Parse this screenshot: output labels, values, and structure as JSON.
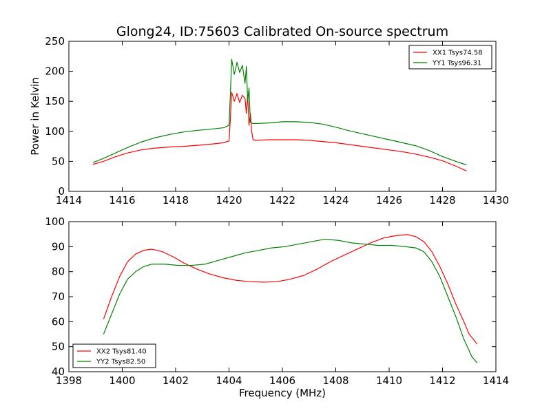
{
  "chart_data": [
    {
      "type": "line",
      "title": "Glong24, ID:75603 Calibrated On-source spectrum",
      "xlabel": "",
      "ylabel": "Power in Kelvin",
      "xlim": [
        1414,
        1430
      ],
      "ylim": [
        0,
        250
      ],
      "xticks": [
        "1414",
        "1416",
        "1418",
        "1420",
        "1422",
        "1424",
        "1426",
        "1428",
        "1430"
      ],
      "yticks": [
        "0",
        "50",
        "100",
        "150",
        "200",
        "250"
      ],
      "grid": false,
      "legend": "top-right",
      "series": [
        {
          "name": "XX1 Tsys74.58",
          "color": "#ff0000",
          "points": [
            [
              1414.9,
              45
            ],
            [
              1415.3,
              50
            ],
            [
              1415.7,
              57
            ],
            [
              1416.2,
              64
            ],
            [
              1416.7,
              69
            ],
            [
              1417.2,
              72
            ],
            [
              1417.8,
              74
            ],
            [
              1418.3,
              75
            ],
            [
              1418.9,
              77
            ],
            [
              1419.4,
              79
            ],
            [
              1419.8,
              81
            ],
            [
              1420.0,
              84
            ],
            [
              1420.05,
              120
            ],
            [
              1420.1,
              165
            ],
            [
              1420.2,
              150
            ],
            [
              1420.3,
              163
            ],
            [
              1420.4,
              148
            ],
            [
              1420.5,
              160
            ],
            [
              1420.6,
              155
            ],
            [
              1420.65,
              130
            ],
            [
              1420.7,
              160
            ],
            [
              1420.75,
              110
            ],
            [
              1420.8,
              130
            ],
            [
              1420.85,
              100
            ],
            [
              1420.9,
              86
            ],
            [
              1421.0,
              85
            ],
            [
              1421.5,
              86
            ],
            [
              1422.0,
              86
            ],
            [
              1422.5,
              86
            ],
            [
              1423.0,
              85
            ],
            [
              1423.5,
              83
            ],
            [
              1424.0,
              81
            ],
            [
              1424.5,
              78
            ],
            [
              1425.0,
              75
            ],
            [
              1425.5,
              72
            ],
            [
              1426.0,
              69
            ],
            [
              1426.5,
              66
            ],
            [
              1427.0,
              62
            ],
            [
              1427.5,
              57
            ],
            [
              1428.0,
              51
            ],
            [
              1428.5,
              42
            ],
            [
              1428.9,
              34
            ]
          ]
        },
        {
          "name": "YY1 Tsys96.31",
          "color": "#008000",
          "points": [
            [
              1414.9,
              48
            ],
            [
              1415.3,
              55
            ],
            [
              1415.7,
              63
            ],
            [
              1416.2,
              73
            ],
            [
              1416.7,
              82
            ],
            [
              1417.2,
              89
            ],
            [
              1417.8,
              95
            ],
            [
              1418.3,
              99
            ],
            [
              1418.9,
              102
            ],
            [
              1419.4,
              104
            ],
            [
              1419.8,
              106
            ],
            [
              1420.0,
              110
            ],
            [
              1420.05,
              160
            ],
            [
              1420.1,
              220
            ],
            [
              1420.2,
              195
            ],
            [
              1420.3,
              215
            ],
            [
              1420.4,
              198
            ],
            [
              1420.5,
              210
            ],
            [
              1420.6,
              180
            ],
            [
              1420.65,
              208
            ],
            [
              1420.7,
              150
            ],
            [
              1420.75,
              172
            ],
            [
              1420.8,
              115
            ],
            [
              1420.9,
              113
            ],
            [
              1421.0,
              113
            ],
            [
              1421.5,
              114
            ],
            [
              1422.0,
              116
            ],
            [
              1422.5,
              116
            ],
            [
              1423.0,
              115
            ],
            [
              1423.5,
              112
            ],
            [
              1424.0,
              107
            ],
            [
              1424.5,
              101
            ],
            [
              1425.0,
              96
            ],
            [
              1425.5,
              91
            ],
            [
              1426.0,
              86
            ],
            [
              1426.5,
              81
            ],
            [
              1427.0,
              76
            ],
            [
              1427.5,
              68
            ],
            [
              1428.0,
              58
            ],
            [
              1428.5,
              50
            ],
            [
              1428.9,
              44
            ]
          ]
        }
      ]
    },
    {
      "type": "line",
      "title": "",
      "xlabel": "Frequency (MHz)",
      "ylabel": "",
      "xlim": [
        1398,
        1414
      ],
      "ylim": [
        40,
        100
      ],
      "xticks": [
        "1398",
        "1400",
        "1402",
        "1404",
        "1406",
        "1408",
        "1410",
        "1412",
        "1414"
      ],
      "yticks": [
        "40",
        "50",
        "60",
        "70",
        "80",
        "90",
        "100"
      ],
      "grid": false,
      "legend": "bottom-left",
      "series": [
        {
          "name": "XX2 Tsys81.40",
          "color": "#ff0000",
          "points": [
            [
              1399.3,
              61
            ],
            [
              1399.6,
              70
            ],
            [
              1399.9,
              78
            ],
            [
              1400.2,
              84
            ],
            [
              1400.5,
              87
            ],
            [
              1400.8,
              88.5
            ],
            [
              1401.1,
              89
            ],
            [
              1401.5,
              88
            ],
            [
              1401.9,
              86
            ],
            [
              1402.3,
              83.5
            ],
            [
              1402.8,
              81
            ],
            [
              1403.3,
              79
            ],
            [
              1403.8,
              77.5
            ],
            [
              1404.3,
              76.5
            ],
            [
              1404.8,
              76
            ],
            [
              1405.3,
              75.8
            ],
            [
              1405.8,
              76
            ],
            [
              1406.3,
              77
            ],
            [
              1406.8,
              78.5
            ],
            [
              1407.3,
              81
            ],
            [
              1407.8,
              84
            ],
            [
              1408.3,
              86.5
            ],
            [
              1408.8,
              89
            ],
            [
              1409.3,
              91.5
            ],
            [
              1409.8,
              93.5
            ],
            [
              1410.3,
              94.5
            ],
            [
              1410.7,
              94.8
            ],
            [
              1411.0,
              94
            ],
            [
              1411.3,
              92
            ],
            [
              1411.6,
              88
            ],
            [
              1411.9,
              82
            ],
            [
              1412.2,
              75
            ],
            [
              1412.5,
              67
            ],
            [
              1412.8,
              60
            ],
            [
              1413.0,
              55
            ],
            [
              1413.3,
              51
            ]
          ]
        },
        {
          "name": "YY2 Tsys82.50",
          "color": "#008000",
          "points": [
            [
              1399.3,
              55
            ],
            [
              1399.6,
              63
            ],
            [
              1399.9,
              71
            ],
            [
              1400.2,
              77
            ],
            [
              1400.5,
              80
            ],
            [
              1400.8,
              82
            ],
            [
              1401.1,
              83
            ],
            [
              1401.6,
              83
            ],
            [
              1402.1,
              82.5
            ],
            [
              1402.6,
              82.5
            ],
            [
              1403.1,
              83
            ],
            [
              1403.6,
              84.5
            ],
            [
              1404.1,
              86
            ],
            [
              1404.6,
              87.5
            ],
            [
              1405.1,
              88.5
            ],
            [
              1405.6,
              89.5
            ],
            [
              1406.1,
              90
            ],
            [
              1406.6,
              91
            ],
            [
              1407.1,
              92
            ],
            [
              1407.6,
              93
            ],
            [
              1408.1,
              92.5
            ],
            [
              1408.6,
              91.5
            ],
            [
              1409.1,
              91
            ],
            [
              1409.6,
              90.5
            ],
            [
              1410.1,
              90.5
            ],
            [
              1410.6,
              90
            ],
            [
              1411.0,
              89.5
            ],
            [
              1411.3,
              88
            ],
            [
              1411.6,
              84
            ],
            [
              1411.9,
              78
            ],
            [
              1412.2,
              70
            ],
            [
              1412.5,
              62
            ],
            [
              1412.8,
              53
            ],
            [
              1413.1,
              46
            ],
            [
              1413.3,
              43.5
            ]
          ]
        }
      ]
    }
  ]
}
